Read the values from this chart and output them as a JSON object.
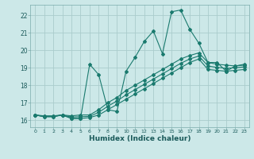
{
  "xlabel": "Humidex (Indice chaleur)",
  "bg_color": "#cce8e8",
  "grid_color": "#aacccc",
  "line_color": "#1a7a6e",
  "xlim": [
    -0.5,
    23.5
  ],
  "ylim": [
    15.6,
    22.6
  ],
  "yticks": [
    16,
    17,
    18,
    19,
    20,
    21,
    22
  ],
  "xticks": [
    0,
    1,
    2,
    3,
    4,
    5,
    6,
    7,
    8,
    9,
    10,
    11,
    12,
    13,
    14,
    15,
    16,
    17,
    18,
    19,
    20,
    21,
    22,
    23
  ],
  "line1_x": [
    0,
    1,
    2,
    3,
    4,
    5,
    6,
    7,
    8,
    9,
    10,
    11,
    12,
    13,
    14,
    15,
    16,
    17,
    18,
    19,
    20,
    21,
    22,
    23
  ],
  "line1_y": [
    16.3,
    16.2,
    16.2,
    16.3,
    16.1,
    16.1,
    19.2,
    18.6,
    16.6,
    16.5,
    18.8,
    19.6,
    20.5,
    21.1,
    19.8,
    22.2,
    22.3,
    21.2,
    20.4,
    19.3,
    19.3,
    18.8,
    19.1,
    19.2
  ],
  "line2_x": [
    0,
    1,
    2,
    3,
    4,
    5,
    6,
    7,
    8,
    9,
    10,
    11,
    12,
    13,
    14,
    15,
    16,
    17,
    18,
    19,
    20,
    21,
    22,
    23
  ],
  "line2_y": [
    16.3,
    16.25,
    16.25,
    16.3,
    16.25,
    16.3,
    16.3,
    16.6,
    17.0,
    17.3,
    17.7,
    18.0,
    18.3,
    18.6,
    18.9,
    19.2,
    19.5,
    19.7,
    19.85,
    19.3,
    19.2,
    19.15,
    19.1,
    19.15
  ],
  "line3_x": [
    0,
    1,
    2,
    3,
    4,
    5,
    6,
    7,
    8,
    9,
    10,
    11,
    12,
    13,
    14,
    15,
    16,
    17,
    18,
    19,
    20,
    21,
    22,
    23
  ],
  "line3_y": [
    16.3,
    16.2,
    16.2,
    16.3,
    16.1,
    16.1,
    16.15,
    16.3,
    16.6,
    16.9,
    17.2,
    17.5,
    17.8,
    18.1,
    18.4,
    18.7,
    19.0,
    19.3,
    19.5,
    18.9,
    18.85,
    18.8,
    18.85,
    18.9
  ],
  "line4_x": [
    0,
    1,
    2,
    3,
    4,
    5,
    6,
    7,
    8,
    9,
    10,
    11,
    12,
    13,
    14,
    15,
    16,
    17,
    18,
    19,
    20,
    21,
    22,
    23
  ],
  "line4_y": [
    16.3,
    16.22,
    16.22,
    16.3,
    16.18,
    16.2,
    16.22,
    16.45,
    16.8,
    17.1,
    17.45,
    17.75,
    18.05,
    18.35,
    18.65,
    18.95,
    19.25,
    19.5,
    19.67,
    19.1,
    19.02,
    18.97,
    19.0,
    19.05
  ]
}
